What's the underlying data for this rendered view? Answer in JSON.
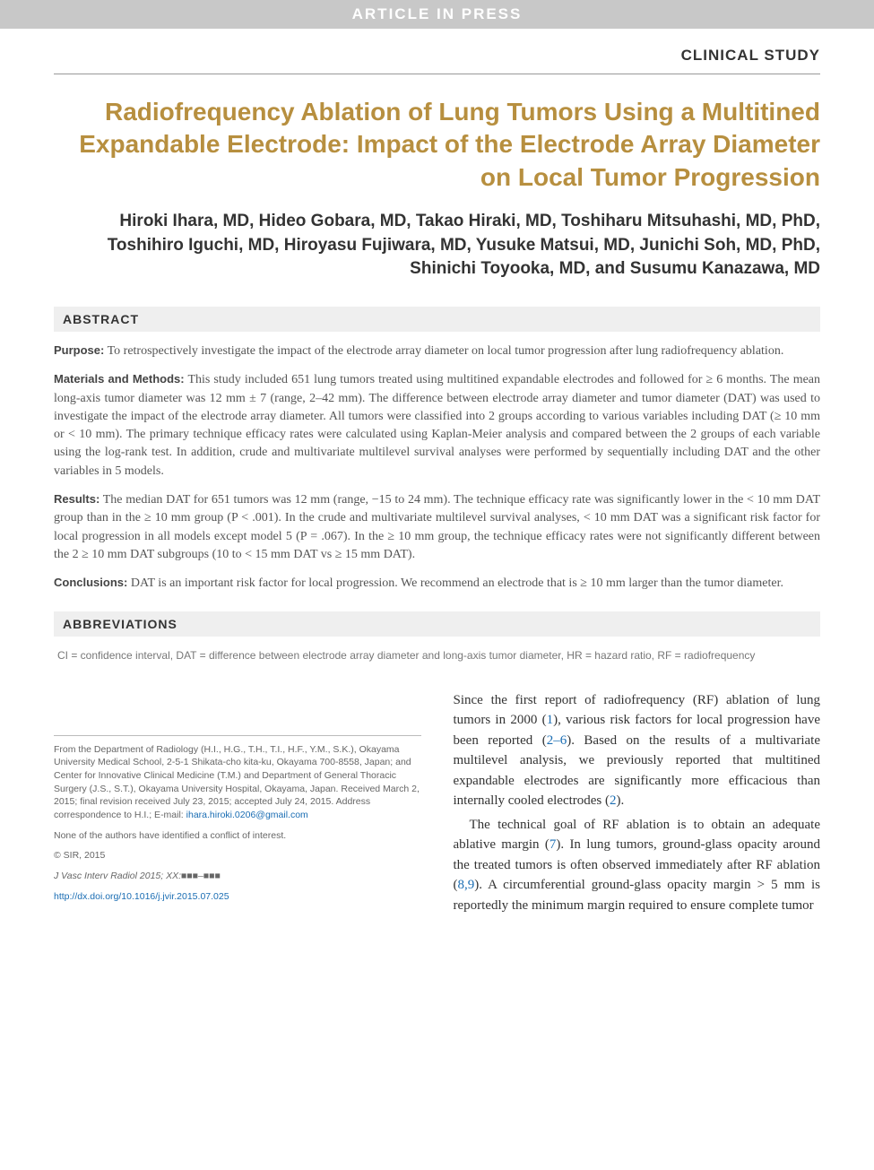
{
  "banner": "ARTICLE IN PRESS",
  "study_type": "CLINICAL STUDY",
  "title": "Radiofrequency Ablation of Lung Tumors Using a Multitined Expandable Electrode: Impact of the Electrode Array Diameter on Local Tumor Progression",
  "authors": "Hiroki Ihara, MD, Hideo Gobara, MD, Takao Hiraki, MD, Toshiharu Mitsuhashi, MD, PhD, Toshihiro Iguchi, MD, Hiroyasu Fujiwara, MD, Yusuke Matsui, MD, Junichi Soh, MD, PhD, Shinichi Toyooka, MD, and Susumu Kanazawa, MD",
  "abstract_heading": "ABSTRACT",
  "abstract": {
    "purpose_label": "Purpose:",
    "purpose": " To retrospectively investigate the impact of the electrode array diameter on local tumor progression after lung radiofrequency ablation.",
    "methods_label": "Materials and Methods:",
    "methods": " This study included 651 lung tumors treated using multitined expandable electrodes and followed for ≥ 6 months. The mean long-axis tumor diameter was 12 mm ± 7 (range, 2–42 mm). The difference between electrode array diameter and tumor diameter (DAT) was used to investigate the impact of the electrode array diameter. All tumors were classified into 2 groups according to various variables including DAT (≥ 10 mm or < 10 mm). The primary technique efficacy rates were calculated using Kaplan-Meier analysis and compared between the 2 groups of each variable using the log-rank test. In addition, crude and multivariate multilevel survival analyses were performed by sequentially including DAT and the other variables in 5 models.",
    "results_label": "Results:",
    "results": " The median DAT for 651 tumors was 12 mm (range, −15 to 24 mm). The technique efficacy rate was significantly lower in the < 10 mm DAT group than in the ≥ 10 mm group (P < .001). In the crude and multivariate multilevel survival analyses, < 10 mm DAT was a significant risk factor for local progression in all models except model 5 (P = .067). In the ≥ 10 mm group, the technique efficacy rates were not significantly different between the 2 ≥ 10 mm DAT subgroups (10 to < 15 mm DAT vs ≥ 15 mm DAT).",
    "conclusions_label": "Conclusions:",
    "conclusions": " DAT is an important risk factor for local progression. We recommend an electrode that is ≥ 10 mm larger than the tumor diameter."
  },
  "abbrev_heading": "ABBREVIATIONS",
  "abbreviations": "CI = confidence interval, DAT = difference between electrode array diameter and long-axis tumor diameter, HR = hazard ratio, RF = radiofrequency",
  "footnotes": {
    "affil": "From the Department of Radiology (H.I., H.G., T.H., T.I., H.F., Y.M., S.K.), Okayama University Medical School, 2-5-1 Shikata-cho kita-ku, Okayama 700-8558, Japan; and Center for Innovative Clinical Medicine (T.M.) and Department of General Thoracic Surgery (J.S., S.T.), Okayama University Hospital, Okayama, Japan. Received March 2, 2015; final revision received July 23, 2015; accepted July 24, 2015. Address correspondence to H.I.; E-mail: ",
    "email": "ihara.hiroki.0206@gmail.com",
    "coi": "None of the authors have identified a conflict of interest.",
    "copyright": "© SIR, 2015",
    "journal": "J Vasc Interv Radiol 2015; XX:■■■–■■■",
    "doi": "http://dx.doi.org/10.1016/j.jvir.2015.07.025"
  },
  "body": {
    "p1a": "Since the first report of radiofrequency (RF) ablation of lung tumors in 2000 (",
    "r1": "1",
    "p1b": "), various risk factors for local progression have been reported (",
    "r2": "2–6",
    "p1c": "). Based on the results of a multivariate multilevel analysis, we previously reported that multitined expandable electrodes are significantly more efficacious than internally cooled electrodes (",
    "r3": "2",
    "p1d": ").",
    "p2a": "The technical goal of RF ablation is to obtain an adequate ablative margin (",
    "r4": "7",
    "p2b": "). In lung tumors, ground-glass opacity around the treated tumors is often observed immediately after RF ablation (",
    "r5": "8,9",
    "p2c": "). A circumferential ground-glass opacity margin > 5 mm is reportedly the minimum margin required to ensure complete tumor"
  },
  "colors": {
    "banner_bg": "#c8c8c8",
    "banner_text": "#ffffff",
    "title_color": "#b78f3f",
    "section_bar_bg": "#efefef",
    "link_color": "#1a6db3",
    "body_text": "#333333",
    "muted_text": "#666666"
  }
}
